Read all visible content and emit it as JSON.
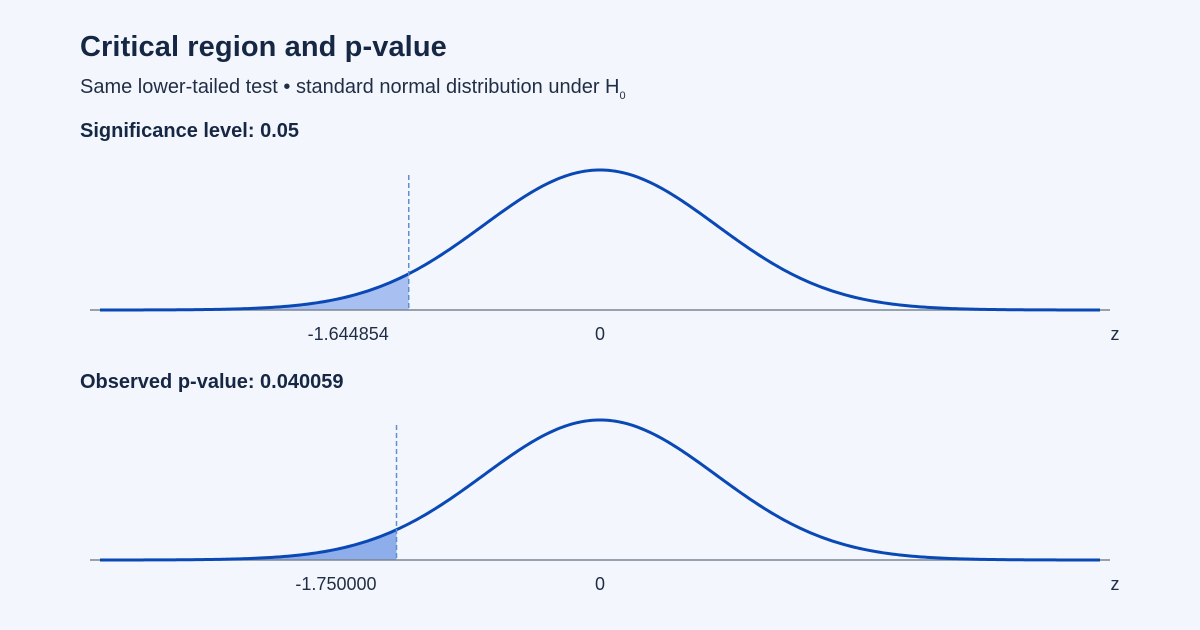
{
  "header": {
    "title": "Critical region and p-value",
    "subtitle_main": "Same lower-tailed test • standard normal distribution under H",
    "subtitle_subscript": "0"
  },
  "colors": {
    "background": "#f3f7fd",
    "curve": "#0a49b5",
    "shade_critical": "#a3bdf0",
    "shade_pvalue": "#88a9ea",
    "marker_line": "#5d8fcf",
    "axis": "#7a8595",
    "text": "#1b2a44"
  },
  "chart_data": [
    {
      "type": "area",
      "title": "Significance level: 0.05",
      "distribution": "standard normal",
      "tail": "lower",
      "x_range": [
        -4.3,
        4.3
      ],
      "xlabel": "z",
      "shaded_from": -4.3,
      "cutoff": -1.644854,
      "cutoff_label": "-1.644854",
      "center_label": "0",
      "shaded_area": 0.05
    },
    {
      "type": "area",
      "title": "Observed p-value: 0.040059",
      "distribution": "standard normal",
      "tail": "lower",
      "x_range": [
        -4.3,
        4.3
      ],
      "xlabel": "z",
      "shaded_from": -4.3,
      "cutoff": -1.75,
      "cutoff_label": "-1.750000",
      "center_label": "0",
      "shaded_area": 0.040059
    }
  ]
}
